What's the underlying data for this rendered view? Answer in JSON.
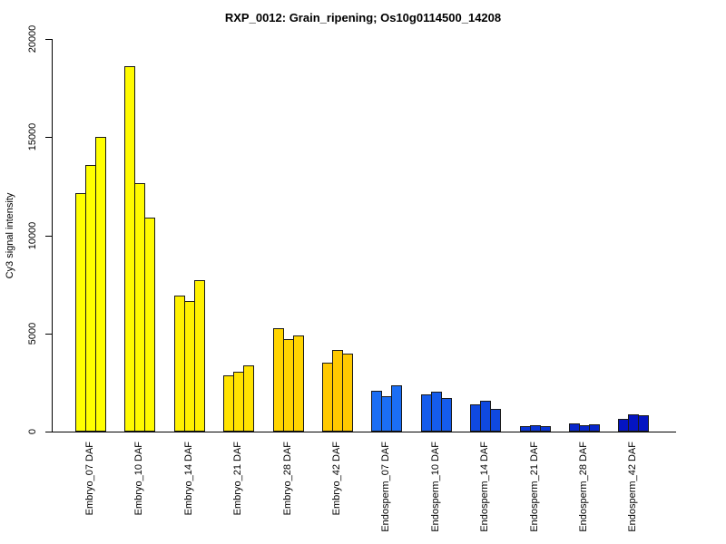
{
  "chart_data": {
    "type": "bar",
    "title": "RXP_0012: Grain_ripening; Os10g0114500_14208",
    "xlabel": "",
    "ylabel": "Cy3 signal intensity",
    "ylim": [
      0,
      20000
    ],
    "yticks": [
      0,
      5000,
      10000,
      15000,
      20000
    ],
    "grid": false,
    "legend_position": "none",
    "bars_per_group": 3,
    "bar_border_color": "#1a1a1a",
    "groups": [
      {
        "label": "Embryo_07 DAF",
        "color": "#ffff00",
        "values": [
          12150,
          13600,
          15000
        ]
      },
      {
        "label": "Embryo_10 DAF",
        "color": "#fffb00",
        "values": [
          18600,
          12650,
          10900
        ]
      },
      {
        "label": "Embryo_14 DAF",
        "color": "#fff100",
        "values": [
          6950,
          6650,
          7700
        ]
      },
      {
        "label": "Embryo_21 DAF",
        "color": "#ffe300",
        "values": [
          2850,
          3050,
          3370
        ]
      },
      {
        "label": "Embryo_28 DAF",
        "color": "#ffd400",
        "values": [
          5250,
          4700,
          4900
        ]
      },
      {
        "label": "Embryo_42 DAF",
        "color": "#ffc900",
        "values": [
          3500,
          4150,
          3950
        ]
      },
      {
        "label": "Endosperm_07 DAF",
        "color": "#1b6ef5",
        "values": [
          2100,
          1800,
          2350
        ]
      },
      {
        "label": "Endosperm_10 DAF",
        "color": "#155cec",
        "values": [
          1900,
          2050,
          1700
        ]
      },
      {
        "label": "Endosperm_14 DAF",
        "color": "#0f49e0",
        "values": [
          1400,
          1550,
          1150
        ]
      },
      {
        "label": "Endosperm_21 DAF",
        "color": "#0a36d6",
        "values": [
          260,
          340,
          280
        ]
      },
      {
        "label": "Endosperm_28 DAF",
        "color": "#0726cc",
        "values": [
          430,
          310,
          390
        ]
      },
      {
        "label": "Endosperm_42 DAF",
        "color": "#0414c2",
        "values": [
          660,
          890,
          820
        ]
      }
    ]
  }
}
